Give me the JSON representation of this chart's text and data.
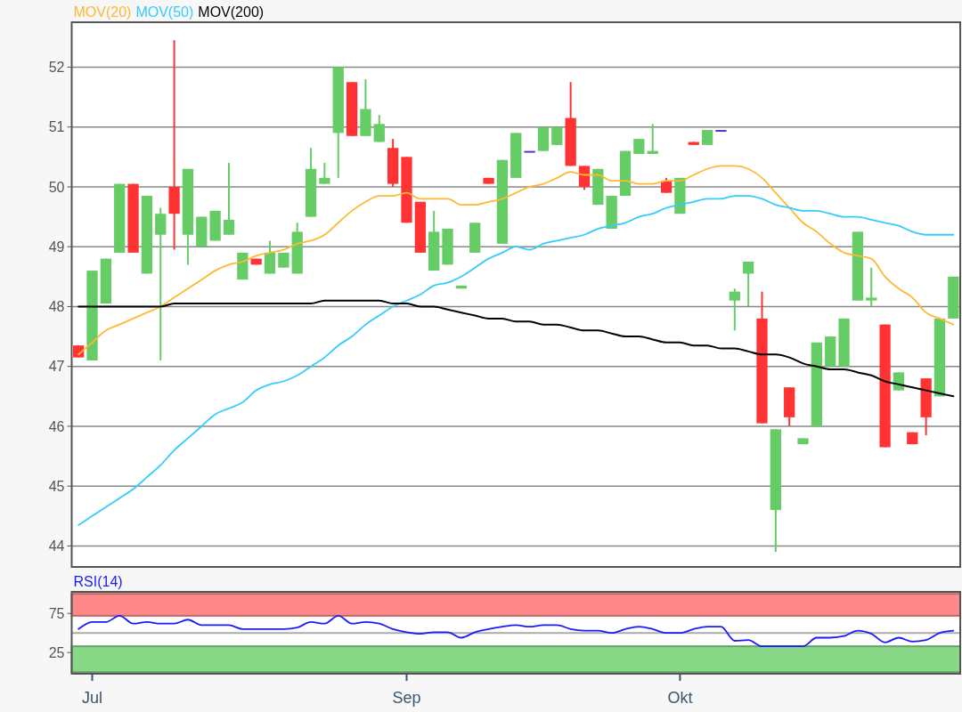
{
  "chart_data": [
    {
      "type": "candlestick",
      "legend": "top left",
      "grid": "y",
      "tick_labels": "y",
      "categories": [
        null,
        null,
        null,
        null,
        null,
        null,
        null,
        null,
        null,
        null,
        null,
        null,
        null,
        null,
        null,
        null,
        null,
        null,
        null,
        null,
        null,
        null,
        null,
        null,
        null,
        null,
        null,
        null,
        null,
        null,
        null,
        null,
        null,
        null,
        null,
        null,
        null,
        null,
        null,
        null,
        null,
        null,
        null,
        null,
        null,
        null,
        null,
        null,
        null,
        null,
        null,
        null,
        null,
        null,
        null,
        null,
        null,
        null,
        null,
        null,
        null,
        null,
        null,
        null,
        null
      ],
      "ylim": [
        43.65,
        52.75
      ],
      "yticks": [
        44,
        45,
        46,
        47,
        48,
        49,
        50,
        51,
        52
      ],
      "ohlc": [
        [
          47.35,
          47.35,
          47.15,
          47.15
        ],
        [
          47.1,
          48.6,
          47.1,
          48.6
        ],
        [
          48.05,
          48.8,
          48.05,
          48.8
        ],
        [
          48.9,
          50.05,
          48.9,
          50.05
        ],
        [
          50.05,
          50.05,
          48.9,
          48.9
        ],
        [
          48.55,
          49.85,
          48.55,
          49.85
        ],
        [
          49.2,
          49.65,
          47.1,
          49.55
        ],
        [
          50.0,
          52.45,
          48.95,
          49.55
        ],
        [
          49.2,
          50.3,
          48.7,
          50.3
        ],
        [
          49.0,
          49.5,
          49.0,
          49.5
        ],
        [
          49.1,
          49.6,
          49.1,
          49.6
        ],
        [
          49.2,
          50.4,
          49.2,
          49.45
        ],
        [
          48.45,
          48.9,
          48.45,
          48.9
        ],
        [
          48.8,
          48.8,
          48.7,
          48.7
        ],
        [
          48.55,
          49.1,
          48.55,
          48.9
        ],
        [
          48.65,
          48.9,
          48.65,
          48.9
        ],
        [
          48.55,
          49.4,
          48.55,
          49.25
        ],
        [
          49.5,
          50.65,
          49.5,
          50.3
        ],
        [
          50.05,
          50.4,
          50.05,
          50.15
        ],
        [
          50.9,
          52.0,
          50.15,
          52.0
        ],
        [
          51.75,
          51.75,
          50.85,
          50.85
        ],
        [
          50.85,
          51.8,
          50.85,
          51.3
        ],
        [
          50.75,
          51.2,
          50.75,
          51.05
        ],
        [
          50.65,
          50.8,
          50.0,
          50.05
        ],
        [
          50.5,
          50.5,
          49.4,
          49.4
        ],
        [
          49.75,
          49.75,
          48.9,
          48.9
        ],
        [
          48.6,
          49.6,
          48.6,
          49.25
        ],
        [
          48.7,
          49.3,
          48.7,
          49.3
        ],
        [
          48.3,
          48.35,
          48.3,
          48.35
        ],
        [
          48.9,
          49.4,
          48.9,
          49.4
        ],
        [
          50.15,
          50.15,
          50.05,
          50.05
        ],
        [
          49.05,
          50.45,
          49.05,
          50.45
        ],
        [
          50.15,
          50.9,
          50.15,
          50.9
        ],
        [
          50.6,
          50.6,
          50.6,
          50.6
        ],
        [
          50.6,
          51.0,
          50.6,
          51.0
        ],
        [
          50.7,
          51.0,
          50.7,
          51.0
        ],
        [
          51.15,
          51.75,
          50.35,
          50.35
        ],
        [
          50.35,
          50.35,
          49.95,
          50.0
        ],
        [
          49.7,
          50.3,
          49.7,
          50.3
        ],
        [
          49.3,
          49.85,
          49.3,
          49.85
        ],
        [
          49.85,
          50.6,
          49.85,
          50.6
        ],
        [
          50.55,
          50.8,
          50.55,
          50.8
        ],
        [
          50.55,
          51.05,
          50.55,
          50.6
        ],
        [
          50.1,
          50.15,
          49.9,
          49.9
        ],
        [
          49.55,
          50.15,
          49.55,
          50.15
        ],
        [
          50.75,
          50.75,
          50.7,
          50.7
        ],
        [
          50.7,
          50.95,
          50.7,
          50.95
        ],
        [
          50.95,
          50.95,
          50.95,
          50.95
        ],
        [
          48.1,
          48.3,
          47.6,
          48.25
        ],
        [
          48.55,
          48.75,
          48.0,
          48.75
        ],
        [
          47.8,
          48.25,
          46.05,
          46.05
        ],
        [
          44.6,
          45.95,
          43.9,
          45.95
        ],
        [
          46.65,
          46.65,
          46.0,
          46.15
        ],
        [
          45.7,
          45.8,
          45.7,
          45.8
        ],
        [
          46.0,
          47.4,
          46.0,
          47.4
        ],
        [
          47.0,
          47.5,
          47.0,
          47.5
        ],
        [
          47.0,
          47.8,
          47.0,
          47.8
        ],
        [
          48.1,
          49.25,
          48.1,
          49.25
        ],
        [
          48.1,
          48.65,
          48.0,
          48.15
        ],
        [
          47.7,
          47.7,
          45.65,
          45.65
        ],
        [
          46.6,
          46.9,
          46.6,
          46.9
        ],
        [
          45.9,
          45.9,
          45.7,
          45.7
        ],
        [
          46.8,
          46.8,
          45.85,
          46.15
        ],
        [
          46.5,
          47.8,
          46.5,
          47.8
        ],
        [
          47.8,
          48.5,
          47.8,
          48.5
        ]
      ],
      "colors": [
        "#ff3333",
        "#66cc66",
        "#66cc66",
        "#66cc66",
        "#ff3333",
        "#66cc66",
        "#66cc66",
        "#ff3333",
        "#66cc66",
        "#66cc66",
        "#66cc66",
        "#66cc66",
        "#66cc66",
        "#ff3333",
        "#66cc66",
        "#66cc66",
        "#66cc66",
        "#66cc66",
        "#66cc66",
        "#66cc66",
        "#ff3333",
        "#66cc66",
        "#66cc66",
        "#ff3333",
        "#ff3333",
        "#ff3333",
        "#66cc66",
        "#66cc66",
        "#66cc66",
        "#66cc66",
        "#ff3333",
        "#66cc66",
        "#66cc66",
        "#5533cc",
        "#66cc66",
        "#66cc66",
        "#ff3333",
        "#ff3333",
        "#66cc66",
        "#66cc66",
        "#66cc66",
        "#66cc66",
        "#66cc66",
        "#ff3333",
        "#66cc66",
        "#ff3333",
        "#66cc66",
        "#5533cc",
        "#66cc66",
        "#66cc66",
        "#ff3333",
        "#66cc66",
        "#ff3333",
        "#66cc66",
        "#66cc66",
        "#66cc66",
        "#66cc66",
        "#66cc66",
        "#66cc66",
        "#ff3333",
        "#66cc66",
        "#ff3333",
        "#ff3333",
        "#66cc66",
        "#66cc66"
      ],
      "series": [
        {
          "type": "line",
          "name": "MOV(20)",
          "color": "#ffb833",
          "values": [
            47.2,
            47.4,
            47.6,
            47.7,
            47.8,
            47.9,
            48.0,
            48.15,
            48.3,
            48.45,
            48.6,
            48.7,
            48.75,
            48.85,
            48.9,
            48.95,
            49.05,
            49.1,
            49.2,
            49.4,
            49.6,
            49.75,
            49.85,
            49.85,
            49.9,
            49.8,
            49.8,
            49.8,
            49.7,
            49.7,
            49.75,
            49.8,
            49.9,
            50.0,
            50.05,
            50.15,
            50.25,
            50.2,
            50.2,
            50.1,
            50.1,
            50.05,
            50.05,
            50.1,
            50.1,
            50.2,
            50.3,
            50.35,
            50.35,
            50.3,
            50.15,
            49.9,
            49.65,
            49.4,
            49.25,
            49.05,
            48.9,
            48.85,
            48.8,
            48.5,
            48.3,
            48.15,
            47.9,
            47.8,
            47.7
          ]
        },
        {
          "type": "line",
          "name": "MOV(50)",
          "color": "#33ccff",
          "values": [
            44.35,
            44.5,
            44.65,
            44.8,
            44.95,
            45.15,
            45.35,
            45.6,
            45.8,
            46.0,
            46.2,
            46.3,
            46.4,
            46.6,
            46.7,
            46.75,
            46.85,
            47.0,
            47.15,
            47.35,
            47.5,
            47.7,
            47.85,
            48.0,
            48.1,
            48.2,
            48.35,
            48.4,
            48.5,
            48.65,
            48.8,
            48.9,
            49.0,
            48.95,
            49.05,
            49.1,
            49.15,
            49.2,
            49.3,
            49.35,
            49.4,
            49.5,
            49.55,
            49.65,
            49.7,
            49.75,
            49.8,
            49.8,
            49.85,
            49.85,
            49.8,
            49.7,
            49.65,
            49.6,
            49.6,
            49.55,
            49.5,
            49.5,
            49.45,
            49.4,
            49.35,
            49.25,
            49.2,
            49.2,
            49.2
          ]
        },
        {
          "type": "line",
          "name": "MOV(200)",
          "color": "#000000",
          "values": [
            48.0,
            48.0,
            48.0,
            48.0,
            48.0,
            48.0,
            48.0,
            48.05,
            48.05,
            48.05,
            48.05,
            48.05,
            48.05,
            48.05,
            48.05,
            48.05,
            48.05,
            48.05,
            48.1,
            48.1,
            48.1,
            48.1,
            48.1,
            48.05,
            48.05,
            48.0,
            48.0,
            47.95,
            47.9,
            47.85,
            47.8,
            47.8,
            47.75,
            47.75,
            47.7,
            47.7,
            47.65,
            47.6,
            47.6,
            47.55,
            47.5,
            47.5,
            47.45,
            47.4,
            47.4,
            47.35,
            47.35,
            47.3,
            47.3,
            47.25,
            47.2,
            47.2,
            47.15,
            47.05,
            47.0,
            46.95,
            46.95,
            46.9,
            46.85,
            46.75,
            46.7,
            46.65,
            46.6,
            46.55,
            46.5
          ]
        }
      ]
    },
    {
      "type": "line",
      "title": "RSI(14)",
      "grid": false,
      "categories": [
        null,
        "Jul",
        null,
        null,
        null,
        null,
        null,
        null,
        null,
        null,
        null,
        null,
        null,
        null,
        null,
        null,
        null,
        null,
        null,
        null,
        null,
        null,
        null,
        null,
        "Sep",
        null,
        null,
        null,
        null,
        null,
        null,
        null,
        null,
        null,
        null,
        null,
        null,
        null,
        null,
        null,
        null,
        null,
        null,
        null,
        "Okt",
        null,
        null,
        null,
        null,
        null,
        null,
        null,
        null,
        null,
        null,
        null,
        null,
        null,
        null,
        null,
        null,
        null,
        null,
        null,
        null
      ],
      "ylim": [
        -2,
        102.5
      ],
      "yticks": [
        25,
        75
      ],
      "bands": [
        {
          "axis": "y",
          "from": 72,
          "to": 100,
          "color": "#ff8888"
        },
        {
          "axis": "y",
          "from": 0,
          "to": 33,
          "color": "#88d888"
        }
      ],
      "ref_lines": [
        {
          "axis": "y",
          "value": 50,
          "color": "#aaaaaa"
        }
      ],
      "series": [
        {
          "color": "#1a1aff",
          "values": [
            55,
            64,
            64,
            72,
            62,
            64,
            62,
            62,
            67,
            60,
            60,
            60,
            55,
            55,
            55,
            55,
            57,
            64,
            62,
            72,
            62,
            64,
            62,
            55,
            51,
            49,
            51,
            51,
            44,
            51,
            55,
            58,
            60,
            58,
            60,
            60,
            55,
            53,
            53,
            50,
            55,
            58,
            55,
            50,
            50,
            55,
            58,
            58,
            40,
            41,
            33,
            33,
            33,
            33,
            44,
            44,
            46,
            53,
            49,
            38,
            44,
            39,
            41,
            50,
            53
          ]
        }
      ]
    }
  ]
}
